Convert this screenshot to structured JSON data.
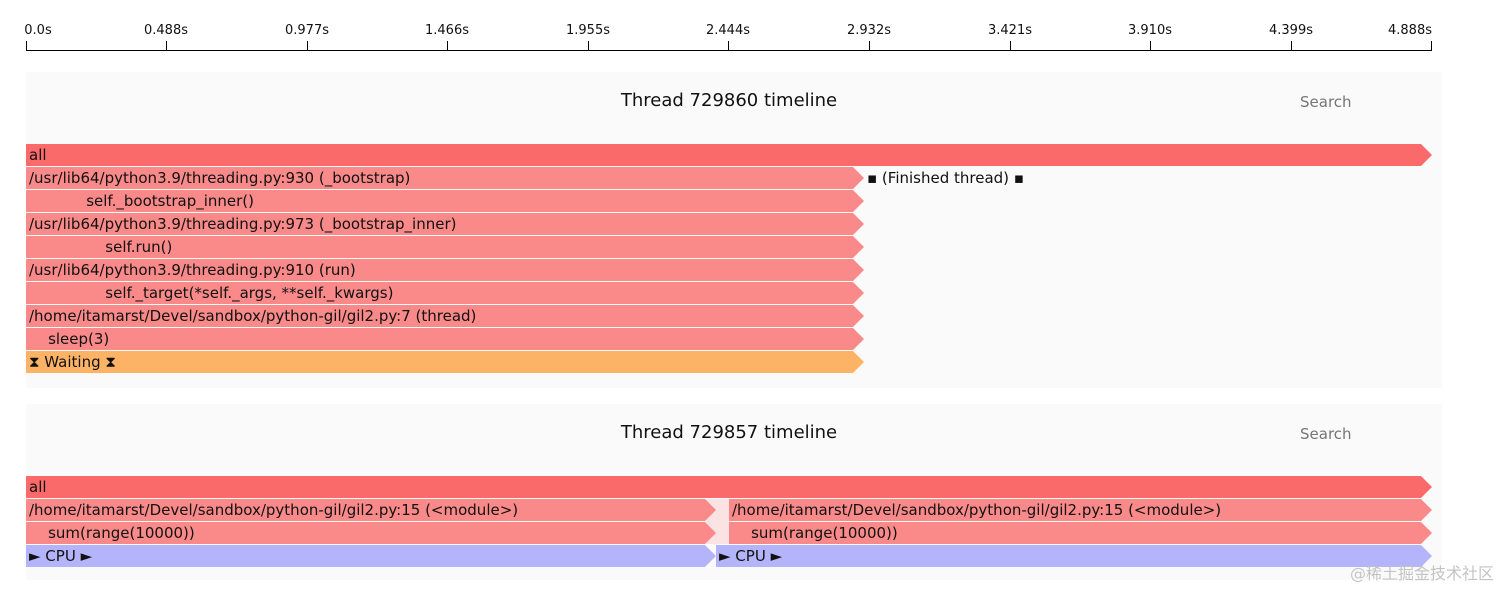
{
  "axis": {
    "ticks": [
      "0.0s",
      "0.488s",
      "0.977s",
      "1.466s",
      "1.955s",
      "2.444s",
      "2.932s",
      "3.421s",
      "3.910s",
      "4.399s",
      "4.888s"
    ]
  },
  "threads": [
    {
      "title": "Thread 729860 timeline",
      "search_placeholder": "Search",
      "frames": {
        "all": "all",
        "bootstrap": "/usr/lib64/python3.9/threading.py:930 (_bootstrap)",
        "bootstrap_code": "            self._bootstrap_inner()",
        "bootstrap_inner": "/usr/lib64/python3.9/threading.py:973 (_bootstrap_inner)",
        "bootstrap_inner_code": "                self.run()",
        "run": "/usr/lib64/python3.9/threading.py:910 (run)",
        "run_code": "                self._target(*self._args, **self._kwargs)",
        "thread": "/home/itamarst/Devel/sandbox/python-gil/gil2.py:7 (thread)",
        "thread_code": "    sleep(3)",
        "waiting": "⧗ Waiting ⧗",
        "finished": "▪ (Finished thread) ▪"
      }
    },
    {
      "title": "Thread 729857 timeline",
      "search_placeholder": "Search",
      "frames": {
        "all": "all",
        "module_left": "/home/itamarst/Devel/sandbox/python-gil/gil2.py:15 (<module>)",
        "code_left": "    sum(range(10000))",
        "cpu_left": "► CPU ►",
        "module_right": "/home/itamarst/Devel/sandbox/python-gil/gil2.py:15 (<module>)",
        "code_right": "    sum(range(10000))",
        "cpu_right": "► CPU ►"
      }
    }
  ],
  "watermark": "@稀土掘金技术社区",
  "colors": {
    "all": "#fa6a6a",
    "code": "#fa8a8a",
    "waiting": "#fdb365",
    "cpu": "#b4b4fa"
  }
}
